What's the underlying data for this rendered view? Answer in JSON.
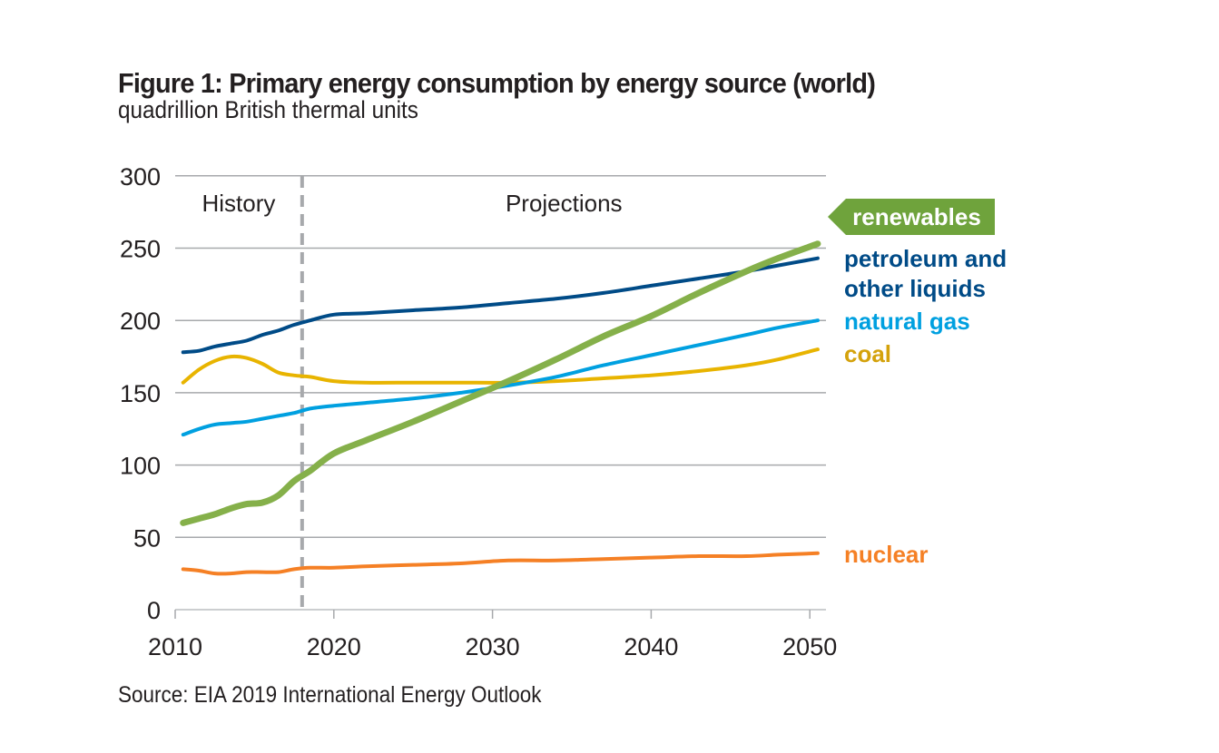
{
  "figure": {
    "title": "Figure 1: Primary energy consumption by energy source (world)",
    "subtitle": "quadrillion British thermal units",
    "source": "Source: EIA 2019 International Energy Outlook"
  },
  "chart_data": {
    "type": "line",
    "title": "Figure 1: Primary energy consumption by energy source (world)",
    "ylabel": "quadrillion British thermal units",
    "xlabel": "",
    "xlim": [
      2010,
      2051
    ],
    "ylim": [
      0,
      300
    ],
    "xticks": [
      2010,
      2020,
      2030,
      2040,
      2050
    ],
    "xtick_labels": [
      "2010",
      "2020",
      "2030",
      "2040",
      "2050"
    ],
    "yticks": [
      0,
      50,
      100,
      150,
      200,
      250,
      300
    ],
    "ytick_labels": [
      "0",
      "50",
      "100",
      "150",
      "200",
      "250",
      "300"
    ],
    "grid": "horizontal",
    "divider": {
      "x": 2018,
      "style": "dashed",
      "color": "#a7a9ac"
    },
    "regions": [
      {
        "label": "History",
        "x": 2014
      },
      {
        "label": "Projections",
        "x": 2034.5
      }
    ],
    "x": [
      2010.5,
      2011.5,
      2012.5,
      2013.5,
      2014.5,
      2015.5,
      2016.5,
      2017.5,
      2018.5,
      2020,
      2022,
      2025,
      2028,
      2031,
      2034,
      2037,
      2040,
      2043,
      2046,
      2048,
      2050.5
    ],
    "series": [
      {
        "name": "petroleum and other liquids",
        "label_lines": [
          "petroleum and",
          "other liquids"
        ],
        "color": "#004b87",
        "width": 4,
        "values": [
          178,
          179,
          182,
          184,
          186,
          190,
          193,
          197,
          200,
          204,
          205,
          207,
          209,
          212,
          215,
          219,
          224,
          229,
          234,
          238,
          243
        ]
      },
      {
        "name": "natural gas",
        "label_lines": [
          "natural gas"
        ],
        "color": "#00a0e0",
        "width": 4,
        "values": [
          121,
          125,
          128,
          129,
          130,
          132,
          134,
          136,
          139,
          141,
          143,
          146,
          150,
          155,
          161,
          169,
          176,
          183,
          190,
          195,
          200
        ]
      },
      {
        "name": "coal",
        "label_lines": [
          "coal"
        ],
        "color": "#e8b400",
        "label_color": "#d4a20c",
        "width": 4,
        "values": [
          157,
          166,
          172,
          175,
          174,
          170,
          164,
          162,
          161,
          158,
          157,
          157,
          157,
          157,
          158,
          160,
          162,
          165,
          169,
          173,
          180
        ]
      },
      {
        "name": "renewables",
        "label_lines": [
          "renewables"
        ],
        "color": "#85b04a",
        "label_bg": "#6fa33c",
        "width": 7,
        "values": [
          60,
          63,
          66,
          70,
          73,
          74,
          79,
          89,
          96,
          108,
          117,
          130,
          144,
          158,
          173,
          189,
          203,
          219,
          234,
          243,
          253
        ]
      },
      {
        "name": "nuclear",
        "label_lines": [
          "nuclear"
        ],
        "color": "#f58025",
        "width": 4,
        "values": [
          28,
          27,
          25,
          25,
          26,
          26,
          26,
          28,
          29,
          29,
          30,
          31,
          32,
          34,
          34,
          35,
          36,
          37,
          37,
          38,
          39
        ]
      }
    ]
  }
}
